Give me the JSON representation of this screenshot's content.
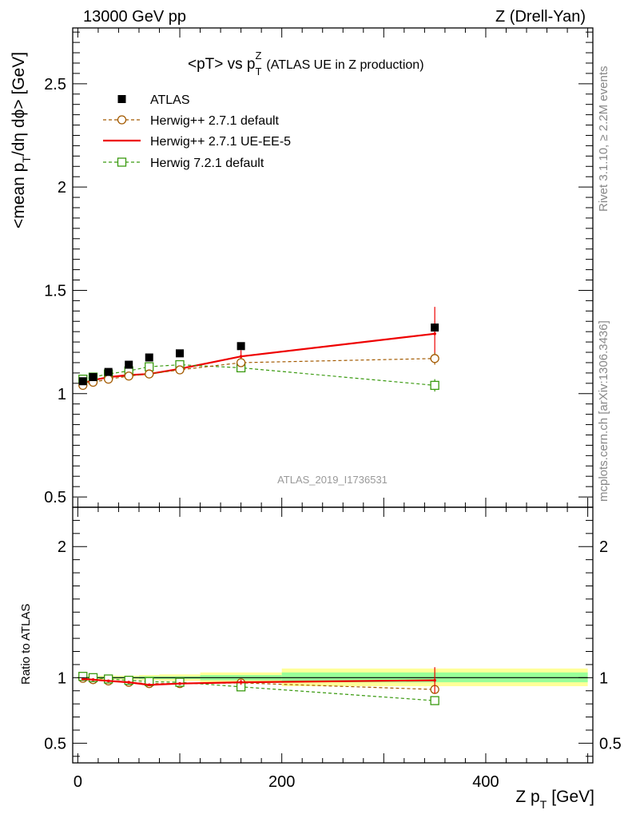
{
  "header": {
    "left": "13000 GeV pp",
    "right": "Z (Drell-Yan)"
  },
  "side_labels": {
    "rivet": "Rivet 3.1.10, ≥ 2.2M events",
    "mcplots": "mcplots.cern.ch [arXiv:1306.3436]"
  },
  "chart_data": [
    {
      "type": "scatter",
      "panel": "main",
      "title_main": "<pT> vs p",
      "title_sub": "T",
      "title_sup": "Z",
      "title_paren": "(ATLAS UE in Z production)",
      "ylabel_main": "<mean p",
      "ylabel_sub": "T",
      "ylabel_rest": "/dη dϕ> [GeV]",
      "watermark": "ATLAS_2019_I1736531",
      "xlim": [
        -5,
        505
      ],
      "ylim": [
        0.45,
        2.77
      ],
      "y_ticks": [
        0.5,
        1,
        1.5,
        2,
        2.5
      ],
      "y_tick_labels": [
        "0.5",
        "1",
        "1.5",
        "2",
        "2.5"
      ],
      "legend_position": "top-left",
      "series": [
        {
          "name": "ATLAS",
          "color": "#000000",
          "style": "filled-square",
          "x": [
            5,
            15,
            30,
            50,
            70,
            100,
            160,
            350
          ],
          "y": [
            1.06,
            1.08,
            1.105,
            1.14,
            1.175,
            1.195,
            1.23,
            1.32
          ]
        },
        {
          "name": "Herwig++ 2.7.1 default",
          "color": "#a35a00",
          "style": "open-circle-dashed",
          "x": [
            5,
            15,
            30,
            50,
            70,
            100,
            160,
            350
          ],
          "y": [
            1.04,
            1.055,
            1.07,
            1.085,
            1.095,
            1.115,
            1.15,
            1.17
          ],
          "yerr": [
            0.005,
            0.005,
            0.005,
            0.005,
            0.005,
            0.005,
            0.01,
            0.03
          ]
        },
        {
          "name": "Herwig++ 2.7.1 UE-EE-5",
          "color": "#ee0000",
          "style": "solid-line",
          "x": [
            5,
            15,
            30,
            50,
            70,
            100,
            160,
            350
          ],
          "y": [
            1.05,
            1.065,
            1.08,
            1.09,
            1.095,
            1.12,
            1.18,
            1.29
          ],
          "yerr": [
            0.005,
            0.005,
            0.005,
            0.005,
            0.005,
            0.01,
            0.03,
            0.13
          ]
        },
        {
          "name": "Herwig 7.2.1 default",
          "color": "#3a9a10",
          "style": "open-square-dashed",
          "x": [
            5,
            15,
            30,
            50,
            70,
            100,
            160,
            350
          ],
          "y": [
            1.07,
            1.08,
            1.095,
            1.11,
            1.13,
            1.14,
            1.125,
            1.04
          ],
          "yerr": [
            0.005,
            0.005,
            0.005,
            0.005,
            0.005,
            0.005,
            0.015,
            0.03
          ]
        }
      ]
    },
    {
      "type": "scatter",
      "panel": "ratio",
      "ylabel": "Ratio to ATLAS",
      "xlabel_main": "Z p",
      "xlabel_sub": "T",
      "xlabel_rest": "[GeV]",
      "xlim": [
        -5,
        505
      ],
      "ylim": [
        0.35,
        2.3
      ],
      "x_ticks": [
        0,
        200,
        400
      ],
      "x_tick_labels": [
        "0",
        "200",
        "400"
      ],
      "y_ticks": [
        0.5,
        1,
        2
      ],
      "y_tick_labels": [
        "0.5",
        "1",
        "2"
      ],
      "bands": [
        {
          "x0": 0,
          "x1": 10,
          "yellow": [
            0.99,
            1.01
          ],
          "green": [
            0.995,
            1.005
          ]
        },
        {
          "x0": 10,
          "x1": 20,
          "yellow": [
            0.99,
            1.01
          ],
          "green": [
            0.995,
            1.005
          ]
        },
        {
          "x0": 20,
          "x1": 40,
          "yellow": [
            0.985,
            1.015
          ],
          "green": [
            0.993,
            1.007
          ]
        },
        {
          "x0": 40,
          "x1": 60,
          "yellow": [
            0.985,
            1.015
          ],
          "green": [
            0.993,
            1.007
          ]
        },
        {
          "x0": 60,
          "x1": 80,
          "yellow": [
            0.98,
            1.02
          ],
          "green": [
            0.99,
            1.01
          ]
        },
        {
          "x0": 80,
          "x1": 120,
          "yellow": [
            0.975,
            1.025
          ],
          "green": [
            0.99,
            1.01
          ]
        },
        {
          "x0": 120,
          "x1": 200,
          "yellow": [
            0.96,
            1.04
          ],
          "green": [
            0.98,
            1.02
          ]
        },
        {
          "x0": 200,
          "x1": 500,
          "yellow": [
            0.935,
            1.07
          ],
          "green": [
            0.965,
            1.04
          ]
        }
      ],
      "series": [
        {
          "name": "Herwig++ 2.7.1 default",
          "color": "#a35a00",
          "style": "open-circle-dashed",
          "x": [
            5,
            15,
            30,
            50,
            70,
            100,
            160,
            350
          ],
          "y": [
            0.995,
            0.985,
            0.975,
            0.965,
            0.955,
            0.955,
            0.96,
            0.91
          ],
          "yerr": [
            0.005,
            0.005,
            0.005,
            0.005,
            0.005,
            0.005,
            0.01,
            0.03
          ]
        },
        {
          "name": "Herwig++ 2.7.1 UE-EE-5",
          "color": "#ee0000",
          "style": "solid-line",
          "x": [
            5,
            15,
            30,
            50,
            70,
            100,
            160,
            350
          ],
          "y": [
            0.99,
            0.985,
            0.975,
            0.965,
            0.945,
            0.955,
            0.965,
            0.98
          ],
          "yerr": [
            0.005,
            0.005,
            0.005,
            0.005,
            0.005,
            0.008,
            0.02,
            0.1
          ]
        },
        {
          "name": "Herwig 7.2.1 default",
          "color": "#3a9a10",
          "style": "open-square-dashed",
          "x": [
            5,
            15,
            30,
            50,
            70,
            100,
            160,
            350
          ],
          "y": [
            1.01,
            1.0,
            0.99,
            0.98,
            0.97,
            0.965,
            0.93,
            0.825
          ],
          "yerr": [
            0.005,
            0.005,
            0.005,
            0.005,
            0.005,
            0.005,
            0.012,
            0.025
          ]
        }
      ]
    }
  ]
}
